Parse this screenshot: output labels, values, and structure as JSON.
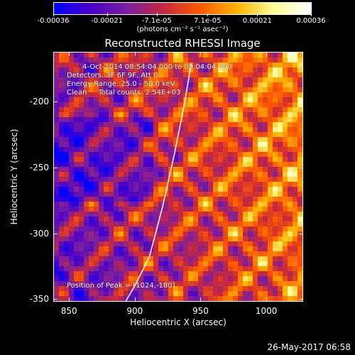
{
  "chart_data": {
    "type": "heatmap",
    "title": "Reconstructed RHESSI Image",
    "xlabel": "Heliocentric X (arcsec)",
    "ylabel": "Heliocentric Y (arcsec)",
    "xlim": [
      838,
      1028
    ],
    "ylim": [
      -352,
      -162
    ],
    "x_ticks": [
      850,
      900,
      950,
      1000
    ],
    "y_ticks": [
      -200,
      -250,
      -300,
      -350
    ],
    "colorbar": {
      "min": -0.00036,
      "max": 0.00036,
      "tick_values": [
        -0.00036,
        -0.00021,
        -7.1e-05,
        7.1e-05,
        0.00021,
        0.00036
      ],
      "tick_labels": [
        "-0.00036",
        "-0.00021",
        "-7.1e-05",
        "7.1e-05",
        "0.00021",
        "0.00036"
      ],
      "units": "(photons cm⁻² s⁻¹ asec⁻²)",
      "colormap": [
        "#0000ff",
        "#4b00c8",
        "#7a1fa0",
        "#c8283c",
        "#ff5a00",
        "#ffb400",
        "#ffff96",
        "#ffffff"
      ]
    },
    "annotations": {
      "time_range": "4-Oct-2014 08:54:04.000 to 09:04:04.000",
      "detectors": "Detectors: 3F 6F 9F, Att 0",
      "energy": "Energy Range: 25.0 - 50.0 keV",
      "clean": "Clean     Total counts: 2.54E+03",
      "peak": "Position of Peak = [1024,-180]"
    },
    "peak": [
      1024,
      -180
    ],
    "limb_curve_x": [
      943,
      938,
      930,
      921,
      911,
      900,
      893
    ],
    "limb_curve_y": [
      -170,
      -200,
      -240,
      -280,
      -318,
      -340,
      -352
    ],
    "grid": false
  },
  "footer_date": "26-May-2017 06:58"
}
